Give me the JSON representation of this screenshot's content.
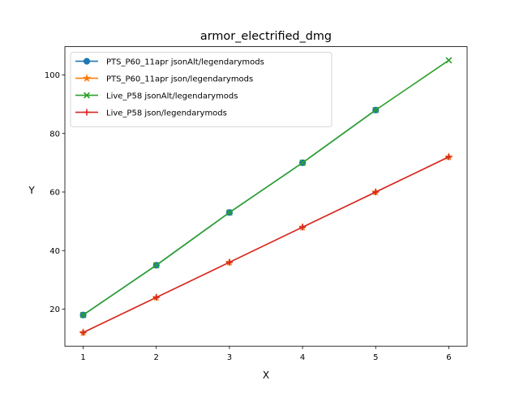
{
  "chart_data": {
    "type": "line",
    "title": "armor_electrified_dmg",
    "xlabel": "X",
    "ylabel": "Y",
    "xlim": [
      0.75,
      6.25
    ],
    "ylim": [
      7.35,
      109.65
    ],
    "xticks": [
      1,
      2,
      3,
      4,
      5,
      6
    ],
    "yticks": [
      20,
      40,
      60,
      80,
      100
    ],
    "x": [
      1,
      2,
      3,
      4,
      5,
      6
    ],
    "grid": false,
    "legend_position": "upper-left",
    "series": [
      {
        "name": "PTS_P60_11apr jsonAlt/legendarymods",
        "x": [
          1,
          2,
          3,
          4,
          5
        ],
        "values": [
          18,
          35,
          53,
          70,
          88
        ],
        "color": "#1f77b4",
        "marker": "circle"
      },
      {
        "name": "PTS_P60_11apr json/legendarymods",
        "x": [
          1,
          2,
          3,
          4,
          5,
          6
        ],
        "values": [
          12,
          24,
          36,
          48,
          60,
          72
        ],
        "color": "#ff7f0e",
        "marker": "star"
      },
      {
        "name": "Live_P58 jsonAlt/legendarymods",
        "x": [
          1,
          2,
          3,
          4,
          5,
          6
        ],
        "values": [
          18,
          35,
          53,
          70,
          88,
          105
        ],
        "color": "#2ca02c",
        "marker": "x"
      },
      {
        "name": "Live_P58 json/legendarymods",
        "x": [
          1,
          2,
          3,
          4,
          5,
          6
        ],
        "values": [
          12,
          24,
          36,
          48,
          60,
          72
        ],
        "color": "#d62728",
        "marker": "plus"
      }
    ]
  }
}
